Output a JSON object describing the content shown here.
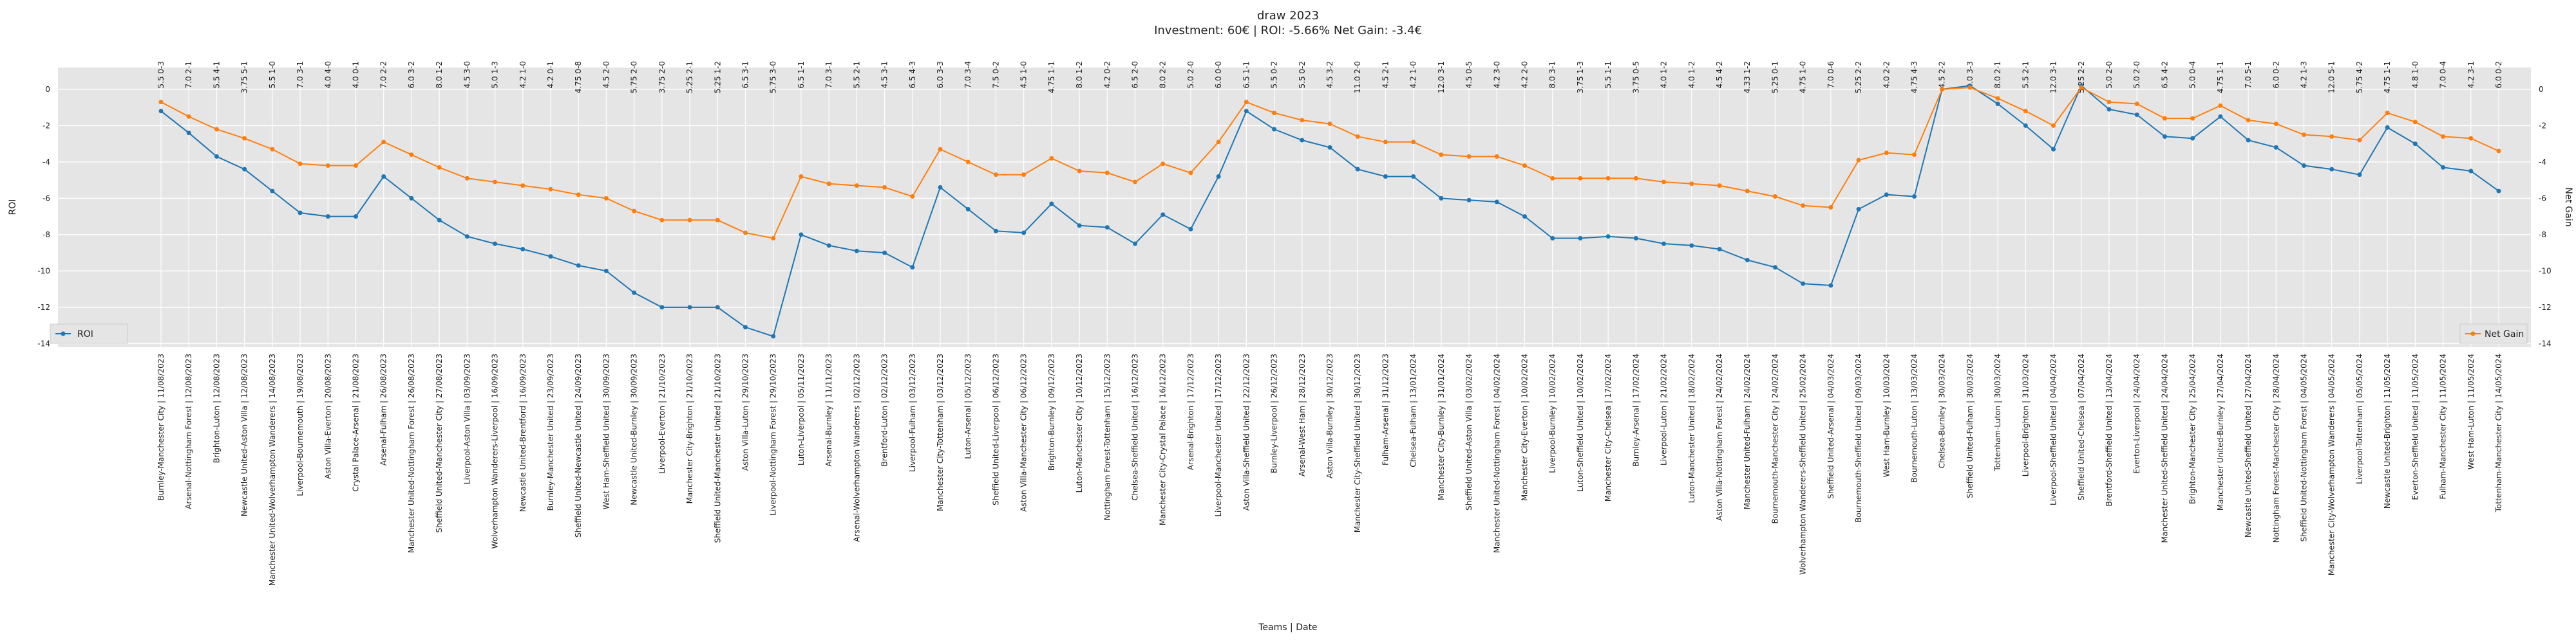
{
  "chart_data": {
    "type": "line",
    "title": "draw 2023",
    "subtitle": "Investment: 60€ | ROI: -5.66% Net Gain: -3.4€",
    "xlabel": "Teams | Date",
    "ylabel_left": "ROI",
    "ylabel_right": "Net Gain",
    "ylim_left": [
      -14.2,
      1.2
    ],
    "ylim_right": [
      -14.2,
      1.2
    ],
    "yticks": [
      0,
      -2,
      -4,
      -6,
      -8,
      -10,
      -12,
      -14
    ],
    "grid": true,
    "colors": {
      "roi": "#1f77b4",
      "net_gain": "#ff7f0e",
      "plot_bg": "#e5e5e5",
      "grid": "#ffffff"
    },
    "legend": [
      {
        "label": "ROI",
        "position": "lower-left",
        "color": "#1f77b4"
      },
      {
        "label": "Net Gain",
        "position": "lower-right",
        "color": "#ff7f0e"
      }
    ],
    "categories": [
      "Burnley-Manchester City | 11/08/2023",
      "Arsenal-Nottingham Forest | 12/08/2023",
      "Brighton-Luton | 12/08/2023",
      "Newcastle United-Aston Villa | 12/08/2023",
      "Manchester United-Wolverhampton Wanderers | 14/08/2023",
      "Liverpool-Bournemouth | 19/08/2023",
      "Aston Villa-Everton | 20/08/2023",
      "Crystal Palace-Arsenal | 21/08/2023",
      "Arsenal-Fulham | 26/08/2023",
      "Manchester United-Nottingham Forest | 26/08/2023",
      "Sheffield United-Manchester City | 27/08/2023",
      "Liverpool-Aston Villa | 03/09/2023",
      "Wolverhampton Wanderers-Liverpool | 16/09/2023",
      "Newcastle United-Brentford | 16/09/2023",
      "Burnley-Manchester United | 23/09/2023",
      "Sheffield United-Newcastle United | 24/09/2023",
      "West Ham-Sheffield United | 30/09/2023",
      "Newcastle United-Burnley | 30/09/2023",
      "Liverpool-Everton | 21/10/2023",
      "Manchester City-Brighton | 21/10/2023",
      "Sheffield United-Manchester United | 21/10/2023",
      "Aston Villa-Luton | 29/10/2023",
      "Liverpool-Nottingham Forest | 29/10/2023",
      "Luton-Liverpool | 05/11/2023",
      "Arsenal-Burnley | 11/11/2023",
      "Arsenal-Wolverhampton Wanderers | 02/12/2023",
      "Brentford-Luton | 02/12/2023",
      "Liverpool-Fulham | 03/12/2023",
      "Manchester City-Tottenham | 03/12/2023",
      "Luton-Arsenal | 05/12/2023",
      "Sheffield United-Liverpool | 06/12/2023",
      "Aston Villa-Manchester City | 06/12/2023",
      "Brighton-Burnley | 09/12/2023",
      "Luton-Manchester City | 10/12/2023",
      "Nottingham Forest-Tottenham | 15/12/2023",
      "Chelsea-Sheffield United | 16/12/2023",
      "Manchester City-Crystal Palace | 16/12/2023",
      "Arsenal-Brighton | 17/12/2023",
      "Liverpool-Manchester United | 17/12/2023",
      "Aston Villa-Sheffield United | 22/12/2023",
      "Burnley-Liverpool | 26/12/2023",
      "Arsenal-West Ham | 28/12/2023",
      "Aston Villa-Burnley | 30/12/2023",
      "Manchester City-Sheffield United | 30/12/2023",
      "Fulham-Arsenal | 31/12/2023",
      "Chelsea-Fulham | 13/01/2024",
      "Manchester City-Burnley | 31/01/2024",
      "Sheffield United-Aston Villa | 03/02/2024",
      "Manchester United-Nottingham Forest | 04/02/2024",
      "Manchester City-Everton | 10/02/2024",
      "Liverpool-Burnley | 10/02/2024",
      "Luton-Sheffield United | 10/02/2024",
      "Manchester City-Chelsea | 17/02/2024",
      "Burnley-Arsenal | 17/02/2024",
      "Liverpool-Luton | 21/02/2024",
      "Luton-Manchester United | 18/02/2024",
      "Aston Villa-Nottingham Forest | 24/02/2024",
      "Manchester United-Fulham | 24/02/2024",
      "Bournemouth-Manchester City | 24/02/2024",
      "Wolverhampton Wanderers-Sheffield United | 25/02/2024",
      "Sheffield United-Arsenal | 04/03/2024",
      "Bournemouth-Sheffield United | 09/03/2024",
      "West Ham-Burnley | 10/03/2024",
      "Bournemouth-Luton | 13/03/2024",
      "Chelsea-Burnley | 30/03/2024",
      "Sheffield United-Fulham | 30/03/2024",
      "Tottenham-Luton | 30/03/2024",
      "Liverpool-Brighton | 31/03/2024",
      "Liverpool-Sheffield United | 04/04/2024",
      "Sheffield United-Chelsea | 07/04/2024",
      "Brentford-Sheffield United | 13/04/2024",
      "Everton-Liverpool | 24/04/2024",
      "Manchester United-Sheffield United | 24/04/2024",
      "Brighton-Manchester City | 25/04/2024",
      "Manchester United-Burnley | 27/04/2024",
      "Newcastle United-Sheffield United | 27/04/2024",
      "Nottingham Forest-Manchester City | 28/04/2024",
      "Sheffield United-Nottingham Forest | 04/05/2024",
      "Manchester City-Wolverhampton Wanderers | 04/05/2024",
      "Liverpool-Tottenham | 05/05/2024",
      "Newcastle United-Brighton | 11/05/2024",
      "Everton-Sheffield United | 11/05/2024",
      "Fulham-Manchester City | 11/05/2024",
      "West Ham-Luton | 11/05/2024",
      "Tottenham-Manchester City | 14/05/2024"
    ],
    "annotations": [
      "5.5  0-3",
      "7.0  2-1",
      "5.5  4-1",
      "3.75 5-1",
      "5.5  1-0",
      "7.0  3-1",
      "4.0  4-0",
      "4.0  0-1",
      "7.0  2-2",
      "6.0  3-2",
      "8.0  1-2",
      "4.5  3-0",
      "5.0  1-3",
      "4.2  1-0",
      "4.2  0-1",
      "4.75 0-8",
      "4.5  2-0",
      "5.75 2-0",
      "3.75 2-0",
      "5.25 2-1",
      "5.25 1-2",
      "6.5  3-1",
      "5.75 3-0",
      "6.5  1-1",
      "7.0  3-1",
      "5.5  2-1",
      "4.5  3-1",
      "6.5  4-3",
      "6.0  3-3",
      "7.0  3-4",
      "7.5  0-2",
      "4.5  1-0",
      "4.75 1-1",
      "8.0  1-2",
      "4.2  0-2",
      "6.5  2-0",
      "8.0  2-2",
      "5.0  2-0",
      "6.0  0-0",
      "6.5  1-1",
      "5.5  0-2",
      "5.5  0-2",
      "4.5  3-2",
      "11.0 2-0",
      "4.5  2-1",
      "4.2  1-0",
      "12.0 3-1",
      "4.5  0-5",
      "4.2  3-0",
      "4.2  2-0",
      "8.0  3-1",
      "3.75 1-3",
      "5.5  1-1",
      "3.75 0-5",
      "4.0  1-2",
      "4.0  1-2",
      "4.5  4-2",
      "4.33 1-2",
      "5.25 0-1",
      "4.75 1-0",
      "7.0  0-6",
      "5.25 2-2",
      "4.0  2-2",
      "4.75 4-3",
      "4.5  2-2",
      "4.0  3-3",
      "8.0  2-1",
      "5.5  2-1",
      "12.0 3-1",
      "5.25 2-2",
      "5.0  2-0",
      "5.0  2-0",
      "6.5  4-2",
      "5.0  0-4",
      "4.75 1-1",
      "7.0  5-1",
      "6.0  0-2",
      "4.2  1-3",
      "12.0 5-1",
      "5.75 4-2",
      "4.75 1-1",
      "4.8  1-0",
      "7.0  0-4",
      "4.2  3-1",
      "6.0  0-2"
    ],
    "series": [
      {
        "name": "ROI",
        "axis": "left",
        "values": [
          -1.2,
          -2.4,
          -3.7,
          -4.4,
          -5.6,
          -6.8,
          -7.0,
          -7.0,
          -4.8,
          -6.0,
          -7.2,
          -8.1,
          -8.5,
          -8.8,
          -9.2,
          -9.7,
          -10.0,
          -11.2,
          -12.0,
          -12.0,
          -12.0,
          -13.1,
          -13.6,
          -8.0,
          -8.6,
          -8.9,
          -9.0,
          -9.8,
          -5.4,
          -6.6,
          -7.8,
          -7.9,
          -6.3,
          -7.5,
          -7.6,
          -8.5,
          -6.9,
          -7.7,
          -4.8,
          -1.2,
          -2.2,
          -2.8,
          -3.2,
          -4.4,
          -4.8,
          -4.8,
          -6.0,
          -6.1,
          -6.2,
          -7.0,
          -8.2,
          -8.2,
          -8.1,
          -8.2,
          -8.5,
          -8.6,
          -8.8,
          -9.4,
          -9.8,
          -10.7,
          -10.8,
          -6.6,
          -5.8,
          -5.9,
          0.0,
          0.2,
          -0.8,
          -2.0,
          -3.3,
          0.2,
          -1.1,
          -1.4,
          -2.6,
          -2.7,
          -1.5,
          -2.8,
          -3.2,
          -4.2,
          -4.4,
          -4.7,
          -2.1,
          -3.0,
          -4.3,
          -4.5,
          -5.6
        ]
      },
      {
        "name": "Net Gain",
        "axis": "right",
        "values": [
          -0.7,
          -1.5,
          -2.2,
          -2.7,
          -3.3,
          -4.1,
          -4.2,
          -4.2,
          -2.9,
          -3.6,
          -4.3,
          -4.9,
          -5.1,
          -5.3,
          -5.5,
          -5.8,
          -6.0,
          -6.7,
          -7.2,
          -7.2,
          -7.2,
          -7.9,
          -8.2,
          -4.8,
          -5.2,
          -5.3,
          -5.4,
          -5.9,
          -3.3,
          -4.0,
          -4.7,
          -4.7,
          -3.8,
          -4.5,
          -4.6,
          -5.1,
          -4.1,
          -4.6,
          -2.9,
          -0.7,
          -1.3,
          -1.7,
          -1.9,
          -2.6,
          -2.9,
          -2.9,
          -3.6,
          -3.7,
          -3.7,
          -4.2,
          -4.9,
          -4.9,
          -4.9,
          -4.9,
          -5.1,
          -5.2,
          -5.3,
          -5.6,
          -5.9,
          -6.4,
          -6.5,
          -3.9,
          -3.5,
          -3.6,
          0.0,
          0.1,
          -0.5,
          -1.2,
          -2.0,
          0.1,
          -0.7,
          -0.8,
          -1.6,
          -1.6,
          -0.9,
          -1.7,
          -1.9,
          -2.5,
          -2.6,
          -2.8,
          -1.3,
          -1.8,
          -2.6,
          -2.7,
          -3.4
        ]
      }
    ]
  }
}
